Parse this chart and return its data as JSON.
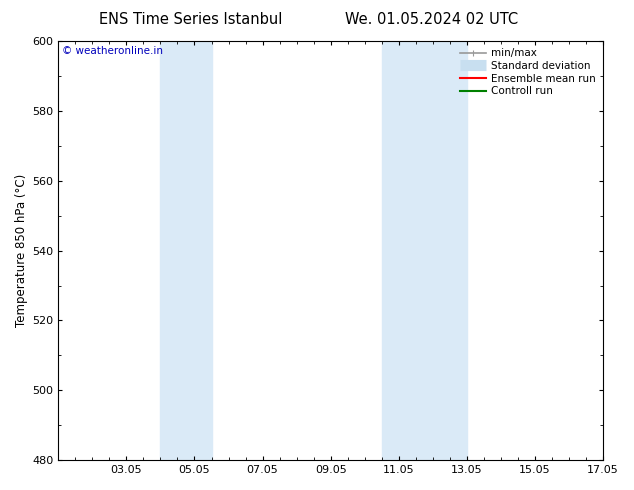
{
  "title_left": "ENS Time Series Istanbul",
  "title_right": "We. 01.05.2024 02 UTC",
  "ylabel": "Temperature 850 hPa (°C)",
  "xlim": [
    1.05,
    17.05
  ],
  "ylim": [
    480,
    600
  ],
  "yticks": [
    480,
    500,
    520,
    540,
    560,
    580,
    600
  ],
  "xticks": [
    3.05,
    5.05,
    7.05,
    9.05,
    11.05,
    13.05,
    15.05,
    17.05
  ],
  "xticklabels": [
    "03.05",
    "05.05",
    "07.05",
    "09.05",
    "11.05",
    "13.05",
    "15.05",
    "17.05"
  ],
  "shaded_bands": [
    {
      "x_start": 4.05,
      "x_end": 5.55,
      "color": "#daeaf7"
    },
    {
      "x_start": 10.55,
      "x_end": 13.05,
      "color": "#daeaf7"
    }
  ],
  "watermark_text": "© weatheronline.in",
  "watermark_color": "#0000bb",
  "legend_items": [
    {
      "label": "min/max",
      "color": "#999999",
      "lw": 1.2,
      "style": "solid"
    },
    {
      "label": "Standard deviation",
      "color": "#c8dff0",
      "lw": 8,
      "style": "solid"
    },
    {
      "label": "Ensemble mean run",
      "color": "#ff0000",
      "lw": 1.5,
      "style": "solid"
    },
    {
      "label": "Controll run",
      "color": "#008000",
      "lw": 1.5,
      "style": "solid"
    }
  ],
  "bg_color": "#ffffff",
  "plot_bg_color": "#ffffff",
  "title_fontsize": 10.5,
  "tick_fontsize": 8,
  "ylabel_fontsize": 8.5,
  "legend_fontsize": 7.5,
  "watermark_fontsize": 7.5
}
